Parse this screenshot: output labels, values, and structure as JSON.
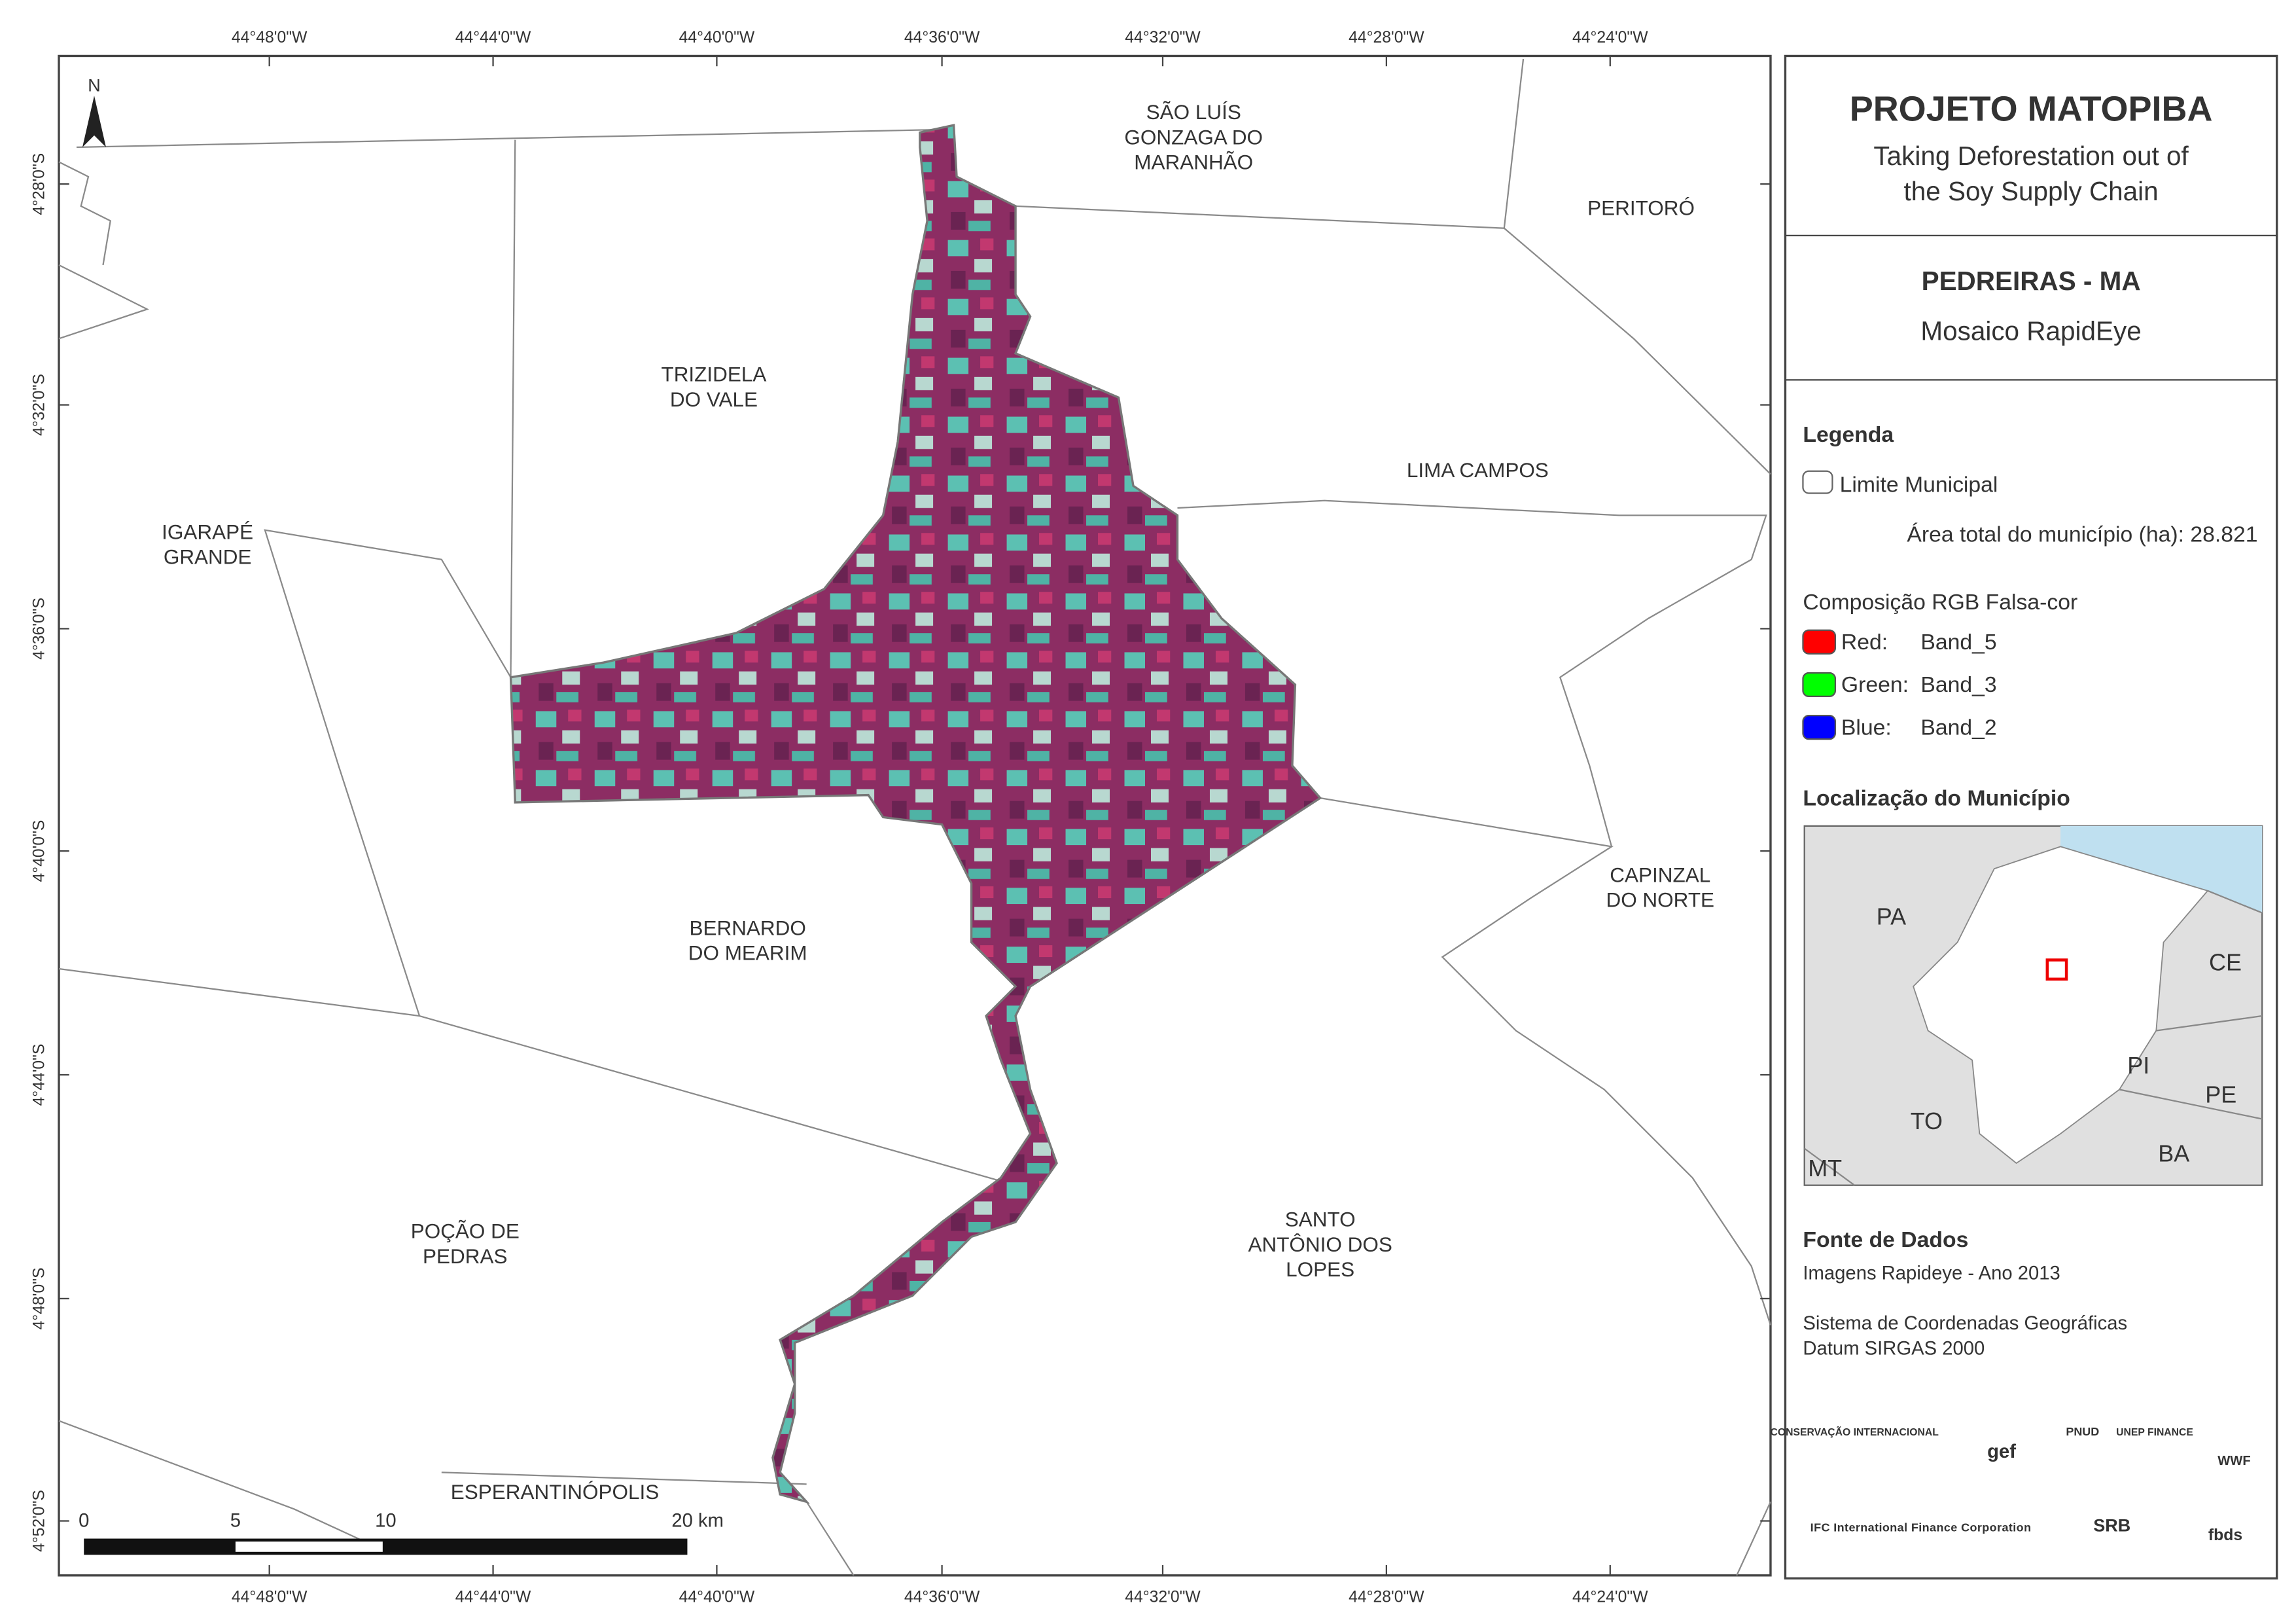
{
  "header": {
    "title": "PROJETO MATOPIBA",
    "subtitle_lines": [
      "Taking Deforestation out of",
      "the Soy Supply Chain"
    ]
  },
  "map_info": {
    "title": "PEDREIRAS - MA",
    "subtitle": "Mosaico RapidEye"
  },
  "legend": {
    "title": "Legenda",
    "boundary": "Limite Municipal",
    "area_label": "Área total do município (ha): 28.821",
    "composition": "Composição RGB Falsa-cor",
    "bands": [
      {
        "channel": "Red:",
        "band": "Band_5",
        "color": "#ff0000"
      },
      {
        "channel": "Green:",
        "band": "Band_3",
        "color": "#00ff00"
      },
      {
        "channel": "Blue:",
        "band": "Band_2",
        "color": "#0000ff"
      }
    ]
  },
  "location": {
    "title": "Localização do Município",
    "states": [
      "PA",
      "CE",
      "PI",
      "TO",
      "PE",
      "BA",
      "MT"
    ]
  },
  "sources": {
    "title": "Fonte de Dados",
    "lines": [
      "Imagens Rapideye - Ano 2013",
      "Sistema de Coordenadas Geográficas",
      "Datum SIRGAS 2000"
    ]
  },
  "map": {
    "north": "N",
    "top_ticks": [
      "44°48'0\"W",
      "44°44'0\"W",
      "44°40'0\"W",
      "44°36'0\"W",
      "44°32'0\"W",
      "44°28'0\"W",
      "44°24'0\"W"
    ],
    "bottom_ticks": [
      "44°48'0\"W",
      "44°44'0\"W",
      "44°40'0\"W",
      "44°36'0\"W",
      "44°32'0\"W",
      "44°28'0\"W",
      "44°24'0\"W"
    ],
    "left_ticks": [
      "4°28'0\"S",
      "4°32'0\"S",
      "4°36'0\"S",
      "4°40'0\"S",
      "4°44'0\"S",
      "4°48'0\"S",
      "4°52'0\"S"
    ],
    "municipalities": [
      {
        "lines": [
          "SÃO LUÍS",
          "GONZAGA DO",
          "MARANHÃO"
        ]
      },
      {
        "lines": [
          "PERITORÓ"
        ]
      },
      {
        "lines": [
          "TRIZIDELA",
          "DO VALE"
        ]
      },
      {
        "lines": [
          "LIMA CAMPOS"
        ]
      },
      {
        "lines": [
          "IGARAPÉ",
          "GRANDE"
        ]
      },
      {
        "lines": [
          "BERNARDO",
          "DO MEARIM"
        ]
      },
      {
        "lines": [
          "CAPINZAL",
          "DO NORTE"
        ]
      },
      {
        "lines": [
          "POÇÃO DE",
          "PEDRAS"
        ]
      },
      {
        "lines": [
          "SANTO",
          "ANTÔNIO DOS",
          "LOPES"
        ]
      },
      {
        "lines": [
          "ESPERANTINÓPOLIS"
        ]
      }
    ],
    "scale_labels": [
      "0",
      "5",
      "10",
      "20 km"
    ]
  },
  "logos": [
    "CONSERVAÇÃO INTERNACIONAL",
    "gef",
    "PNUD",
    "UNEP FINANCE",
    "WWF",
    "IFC International Finance Corporation",
    "SRB",
    "fbds"
  ]
}
